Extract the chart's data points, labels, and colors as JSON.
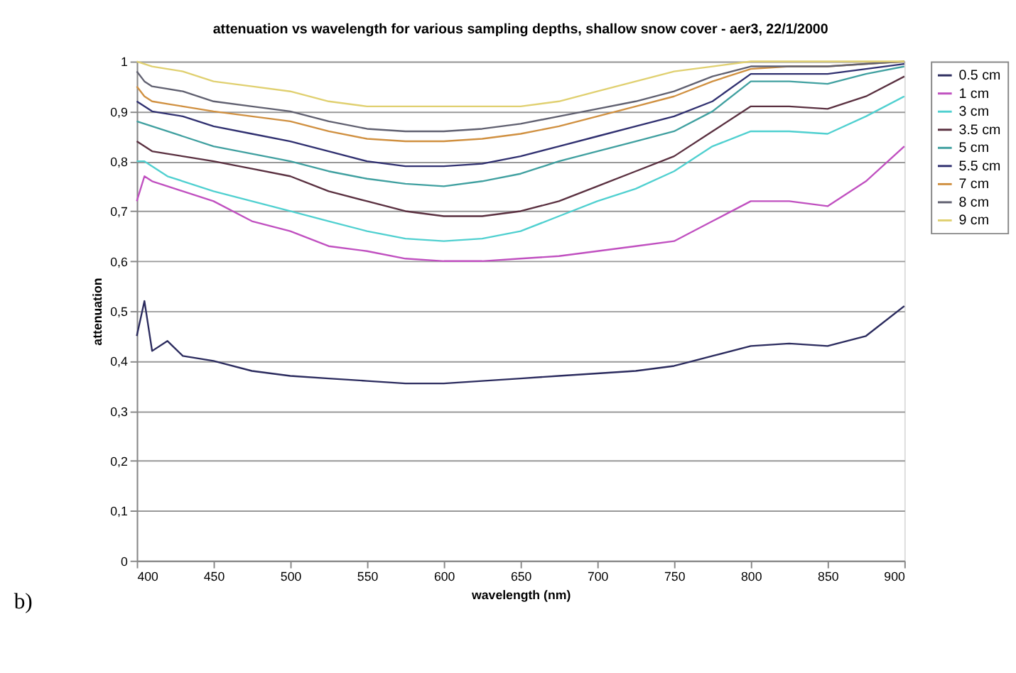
{
  "chart_data": {
    "type": "line",
    "title": "attenuation vs wavelength for various sampling depths, shallow snow cover - aer3, 22/1/2000",
    "xlabel": "wavelength (nm)",
    "ylabel": "attenuation",
    "x": [
      400,
      405,
      410,
      420,
      430,
      450,
      475,
      500,
      525,
      550,
      575,
      600,
      625,
      650,
      675,
      700,
      725,
      750,
      775,
      800,
      825,
      850,
      875,
      900
    ],
    "series": [
      {
        "name": "0.5 cm",
        "color": "#2b2b5e",
        "values": [
          0.45,
          0.52,
          0.42,
          0.44,
          0.41,
          0.4,
          0.38,
          0.37,
          0.365,
          0.36,
          0.355,
          0.355,
          0.36,
          0.365,
          0.37,
          0.375,
          0.38,
          0.39,
          0.41,
          0.43,
          0.435,
          0.43,
          0.45,
          0.51
        ]
      },
      {
        "name": "1 cm",
        "color": "#c050c0",
        "values": [
          0.72,
          0.77,
          0.76,
          0.75,
          0.74,
          0.72,
          0.68,
          0.66,
          0.63,
          0.62,
          0.605,
          0.6,
          0.6,
          0.605,
          0.61,
          0.62,
          0.63,
          0.64,
          0.68,
          0.72,
          0.72,
          0.71,
          0.76,
          0.83
        ]
      },
      {
        "name": "3 cm",
        "color": "#50d0d0",
        "values": [
          0.8,
          0.8,
          0.79,
          0.77,
          0.76,
          0.74,
          0.72,
          0.7,
          0.68,
          0.66,
          0.645,
          0.64,
          0.645,
          0.66,
          0.69,
          0.72,
          0.745,
          0.78,
          0.83,
          0.86,
          0.86,
          0.855,
          0.89,
          0.93
        ]
      },
      {
        "name": "3.5 cm",
        "color": "#5a3040",
        "values": [
          0.84,
          0.83,
          0.82,
          0.815,
          0.81,
          0.8,
          0.785,
          0.77,
          0.74,
          0.72,
          0.7,
          0.69,
          0.69,
          0.7,
          0.72,
          0.75,
          0.78,
          0.81,
          0.86,
          0.91,
          0.91,
          0.905,
          0.93,
          0.97
        ]
      },
      {
        "name": "5 cm",
        "color": "#40a0a0",
        "values": [
          0.88,
          0.875,
          0.87,
          0.86,
          0.85,
          0.83,
          0.815,
          0.8,
          0.78,
          0.765,
          0.755,
          0.75,
          0.76,
          0.775,
          0.8,
          0.82,
          0.84,
          0.86,
          0.9,
          0.96,
          0.96,
          0.955,
          0.975,
          0.99
        ]
      },
      {
        "name": "5.5 cm",
        "color": "#303070",
        "values": [
          0.92,
          0.91,
          0.9,
          0.895,
          0.89,
          0.87,
          0.855,
          0.84,
          0.82,
          0.8,
          0.79,
          0.79,
          0.795,
          0.81,
          0.83,
          0.85,
          0.87,
          0.89,
          0.92,
          0.975,
          0.975,
          0.975,
          0.985,
          0.995
        ]
      },
      {
        "name": "7 cm",
        "color": "#d09040",
        "values": [
          0.95,
          0.93,
          0.92,
          0.915,
          0.91,
          0.9,
          0.89,
          0.88,
          0.86,
          0.845,
          0.84,
          0.84,
          0.845,
          0.855,
          0.87,
          0.89,
          0.91,
          0.93,
          0.96,
          0.985,
          0.99,
          0.99,
          0.995,
          1.0
        ]
      },
      {
        "name": "8 cm",
        "color": "#606070",
        "values": [
          0.98,
          0.96,
          0.95,
          0.945,
          0.94,
          0.92,
          0.91,
          0.9,
          0.88,
          0.865,
          0.86,
          0.86,
          0.865,
          0.875,
          0.89,
          0.905,
          0.92,
          0.94,
          0.97,
          0.99,
          0.99,
          0.99,
          0.995,
          1.0
        ]
      },
      {
        "name": "9 cm",
        "color": "#e0d070",
        "values": [
          1.0,
          0.995,
          0.99,
          0.985,
          0.98,
          0.96,
          0.95,
          0.94,
          0.92,
          0.91,
          0.91,
          0.91,
          0.91,
          0.91,
          0.92,
          0.94,
          0.96,
          0.98,
          0.99,
          1.0,
          1.0,
          1.0,
          1.0,
          1.0
        ]
      }
    ],
    "xlim": [
      400,
      900
    ],
    "xticks": [
      400,
      450,
      500,
      550,
      600,
      650,
      700,
      750,
      800,
      850,
      900
    ],
    "ylim": [
      0,
      1
    ],
    "yticks": [
      0,
      {
        "value": 0.1,
        "label": "0,1"
      },
      {
        "value": 0.2,
        "label": "0,2"
      },
      {
        "value": 0.3,
        "label": "0,3"
      },
      {
        "value": 0.4,
        "label": "0,4"
      },
      {
        "value": 0.5,
        "label": "0,5"
      },
      {
        "value": 0.6,
        "label": "0,6"
      },
      {
        "value": 0.7,
        "label": "0,7"
      },
      {
        "value": 0.8,
        "label": "0,8"
      },
      {
        "value": 0.9,
        "label": "0,9"
      },
      1
    ],
    "grid": "y",
    "legend": "right",
    "marker": "none",
    "line_style": "solid",
    "annotations": [
      "b)"
    ]
  }
}
